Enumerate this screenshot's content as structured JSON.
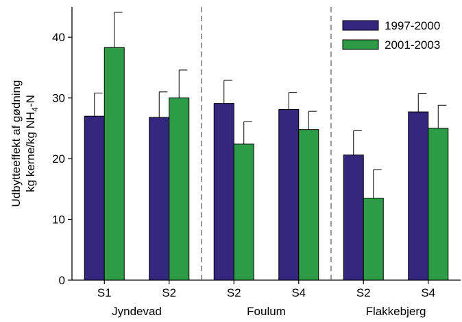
{
  "chart_data": {
    "type": "bar",
    "ylabel_line1": "Udbytteeffekt af gødning",
    "ylabel_line2_prefix": "kg kerne/kg NH",
    "ylabel_line2_sub": "4",
    "ylabel_line2_suffix": "-N",
    "ylim": [
      0,
      45
    ],
    "yticks": [
      0,
      10,
      20,
      30,
      40
    ],
    "categories": [
      "S1",
      "S2",
      "S2",
      "S4",
      "S2",
      "S4"
    ],
    "groups": [
      {
        "label": "Jyndevad",
        "categories": [
          0,
          1
        ]
      },
      {
        "label": "Foulum",
        "categories": [
          2,
          3
        ]
      },
      {
        "label": "Flakkebjerg",
        "categories": [
          4,
          5
        ]
      }
    ],
    "series": [
      {
        "name": "1997-2000",
        "color": "#35267e",
        "values": [
          27.0,
          26.8,
          29.1,
          28.1,
          20.6,
          27.7
        ],
        "errors": [
          3.8,
          4.2,
          3.8,
          2.8,
          4.0,
          3.0
        ]
      },
      {
        "name": "2001-2003",
        "color": "#2e9c46",
        "values": [
          38.3,
          30.0,
          22.4,
          24.8,
          13.5,
          25.0
        ],
        "errors": [
          5.8,
          4.6,
          3.7,
          3.0,
          4.7,
          3.8
        ]
      }
    ],
    "legend_position": "top-right",
    "grid": false
  }
}
